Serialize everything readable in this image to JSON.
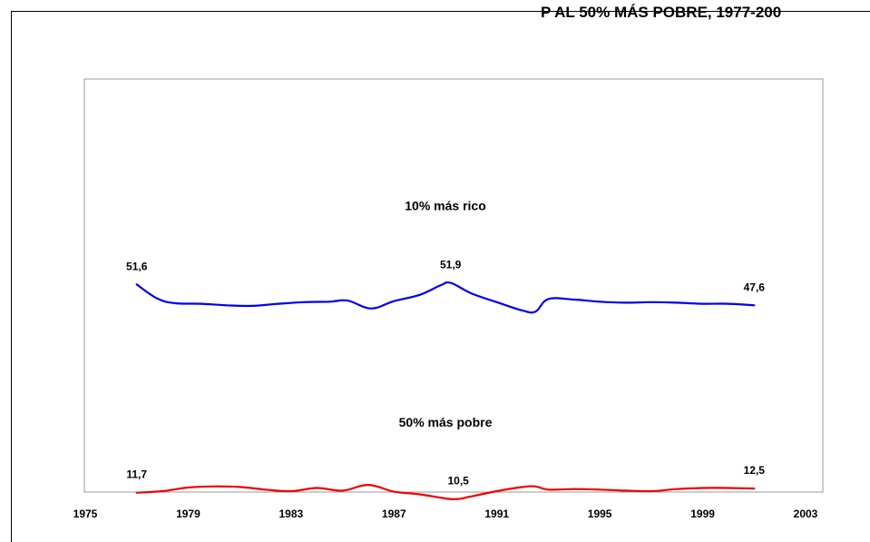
{
  "chart_data": {
    "type": "line",
    "title": "P AL 50% MÁS POBRE, 1977-200",
    "xlim": [
      1975,
      2003
    ],
    "ylim": [
      0,
      70
    ],
    "x_ticks": [
      "1975",
      "1979",
      "1983",
      "1987",
      "1991",
      "1995",
      "1999",
      "2003"
    ],
    "series": [
      {
        "name": "10% más rico",
        "color": "#0000ee",
        "x": [
          1977,
          1977.8,
          1978.5,
          1979.5,
          1980.5,
          1981.5,
          1982.5,
          1983.5,
          1984.5,
          1985.2,
          1986.1,
          1987.0,
          1988.0,
          1988.8,
          1989.2,
          1990.0,
          1991.0,
          1992.0,
          1992.5,
          1993.0,
          1994.0,
          1995.0,
          1996.0,
          1997.0,
          1998.0,
          1999.0,
          2000.0,
          2001.0
        ],
        "values": [
          51.6,
          48.9,
          48.0,
          47.9,
          47.6,
          47.5,
          47.9,
          48.2,
          48.3,
          48.5,
          47.0,
          48.4,
          49.6,
          51.4,
          51.9,
          49.9,
          48.2,
          46.6,
          46.4,
          48.8,
          48.7,
          48.3,
          48.1,
          48.2,
          48.1,
          47.9,
          47.9,
          47.6
        ],
        "labels": [
          {
            "x": 1977,
            "text": "51,6"
          },
          {
            "x": 1989.2,
            "text": "51,9"
          },
          {
            "x": 2001,
            "text": "47,6"
          }
        ]
      },
      {
        "name": "50% más pobre",
        "color": "#ee0000",
        "x": [
          1977,
          1978.0,
          1979.0,
          1980.0,
          1981.0,
          1982.0,
          1983.0,
          1984.0,
          1985.0,
          1986.0,
          1987.0,
          1988.0,
          1989.0,
          1989.5,
          1990.0,
          1991.0,
          1992.0,
          1992.5,
          1993.0,
          1994.0,
          1995.0,
          1996.0,
          1997.0,
          1998.0,
          1999.0,
          2000.0,
          2001.0
        ],
        "values": [
          11.7,
          12.0,
          12.7,
          12.9,
          12.8,
          12.3,
          12.0,
          12.6,
          12.1,
          13.2,
          11.9,
          11.4,
          10.6,
          10.5,
          11.0,
          12.0,
          12.8,
          12.9,
          12.3,
          12.4,
          12.3,
          12.1,
          12.0,
          12.4,
          12.6,
          12.6,
          12.5
        ],
        "labels": [
          {
            "x": 1977,
            "text": "11,7"
          },
          {
            "x": 1989.5,
            "text": "10,5"
          },
          {
            "x": 2001,
            "text": "12,5"
          }
        ]
      }
    ],
    "grid": false,
    "legend": "inline"
  }
}
